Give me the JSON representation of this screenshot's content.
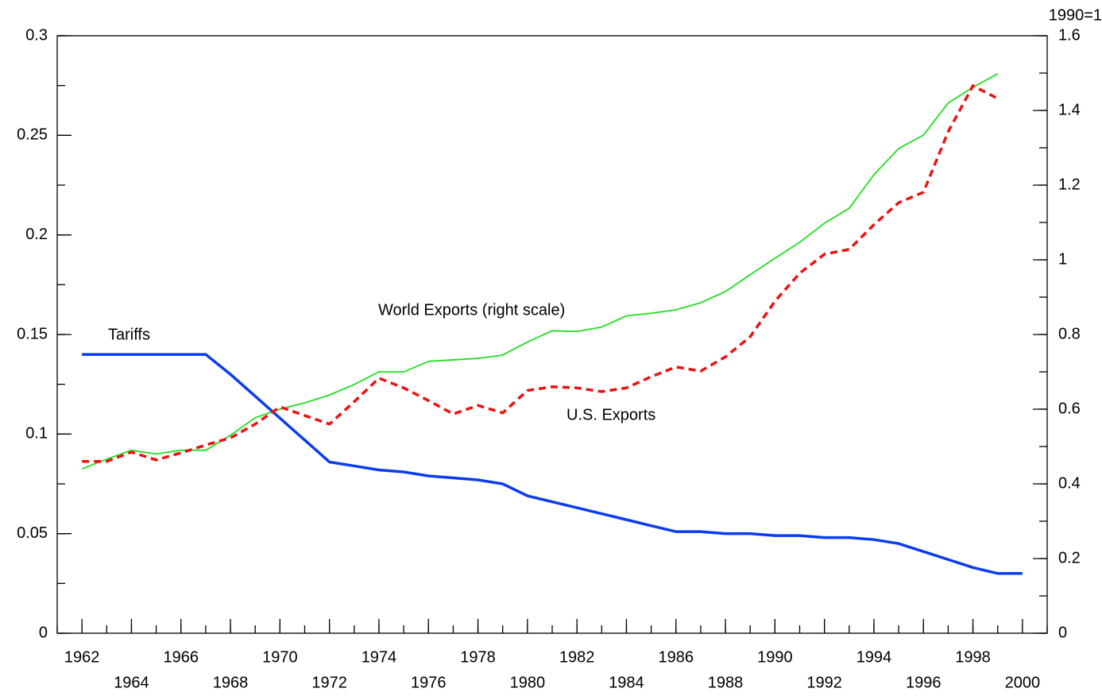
{
  "chart_data": {
    "type": "line",
    "annotations": [
      "Tariffs",
      "World Exports (right scale)",
      "U.S. Exports"
    ],
    "y2_unit": "1990=1",
    "x": [
      1962,
      1963,
      1964,
      1965,
      1966,
      1967,
      1968,
      1969,
      1970,
      1971,
      1972,
      1973,
      1974,
      1975,
      1976,
      1977,
      1978,
      1979,
      1980,
      1981,
      1982,
      1983,
      1984,
      1985,
      1986,
      1987,
      1988,
      1989,
      1990,
      1991,
      1992,
      1993,
      1994,
      1995,
      1996,
      1997,
      1998,
      1999,
      2000
    ],
    "series": [
      {
        "name": "Tariffs",
        "color": "#0a3cf0",
        "axis": "y",
        "values": [
          0.14,
          0.14,
          0.14,
          0.14,
          0.14,
          0.14,
          0.13,
          0.119,
          0.108,
          0.097,
          0.086,
          0.084,
          0.082,
          0.081,
          0.079,
          0.078,
          0.077,
          0.075,
          0.069,
          0.066,
          0.063,
          0.06,
          0.057,
          0.054,
          0.051,
          0.051,
          0.05,
          0.05,
          0.049,
          0.049,
          0.048,
          0.048,
          0.047,
          0.045,
          0.041,
          0.037,
          0.033,
          0.03,
          0.03
        ]
      },
      {
        "name": "World Exports (right scale)",
        "color": "#22dd22",
        "axis": "y2",
        "values": [
          0.44,
          0.466,
          0.49,
          0.48,
          0.49,
          0.49,
          0.53,
          0.577,
          0.6,
          0.617,
          0.638,
          0.666,
          0.7,
          0.7,
          0.728,
          0.732,
          0.736,
          0.745,
          0.78,
          0.81,
          0.808,
          0.82,
          0.85,
          0.857,
          0.866,
          0.885,
          0.915,
          0.96,
          1.004,
          1.047,
          1.098,
          1.138,
          1.228,
          1.298,
          1.334,
          1.42,
          1.462,
          1.498,
          null
        ]
      },
      {
        "name": "U.S. Exports",
        "color": "#ee1111",
        "axis": "y2",
        "dashed": true,
        "values": [
          0.46,
          0.46,
          0.485,
          0.464,
          0.483,
          0.504,
          0.523,
          0.56,
          0.606,
          0.583,
          0.56,
          0.62,
          0.683,
          0.657,
          0.623,
          0.587,
          0.61,
          0.59,
          0.65,
          0.66,
          0.657,
          0.647,
          0.657,
          0.687,
          0.713,
          0.702,
          0.74,
          0.794,
          0.889,
          0.964,
          1.015,
          1.028,
          1.094,
          1.153,
          1.181,
          1.343,
          1.466,
          1.432,
          null
        ]
      }
    ],
    "xlim": [
      1961,
      2001
    ],
    "xticks": [
      1962,
      1964,
      1966,
      1968,
      1970,
      1972,
      1974,
      1976,
      1978,
      1980,
      1982,
      1984,
      1986,
      1988,
      1990,
      1992,
      1994,
      1996,
      1998,
      2000
    ],
    "ylim": [
      0,
      0.3
    ],
    "yticks": [
      0,
      0.05,
      0.1,
      0.15,
      0.2,
      0.25,
      0.3
    ],
    "y2lim": [
      0,
      1.6
    ],
    "y2ticks": [
      0,
      0.2,
      0.4,
      0.6,
      0.8,
      1,
      1.2,
      1.4,
      1.6
    ],
    "grid": false
  }
}
